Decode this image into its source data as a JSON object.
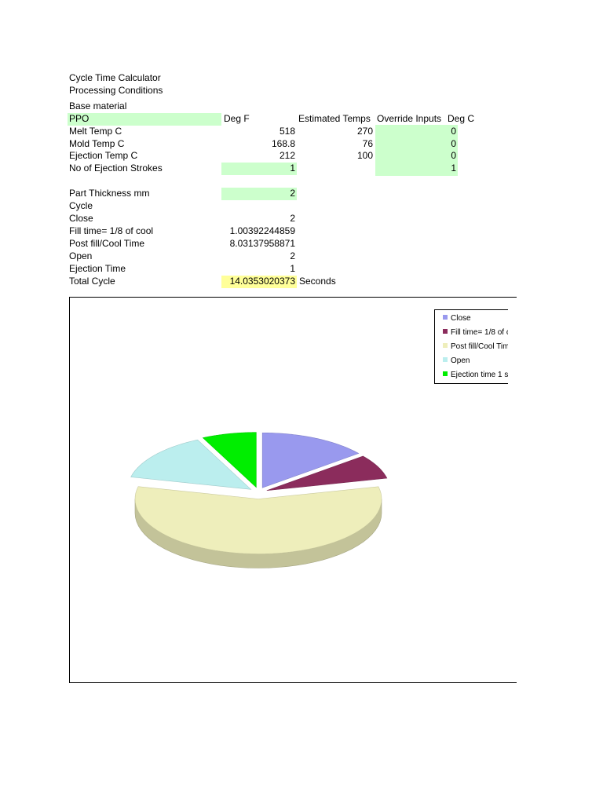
{
  "sheet": {
    "title": "Cycle Time Calculator",
    "subtitle": "Processing Conditions",
    "base_material_label": "Base material",
    "material": "PPO",
    "col_deg_f": "Deg F",
    "col_estimated": "Estimated Temps",
    "col_override": "Override Inputs",
    "col_deg_c": "Deg C",
    "rows": [
      {
        "label": "Melt Temp C",
        "deg_f": "518",
        "estimated": "270",
        "override": "0"
      },
      {
        "label": "Mold Temp C",
        "deg_f": "168.8",
        "estimated": "76",
        "override": "0"
      },
      {
        "label": "Ejection Temp C",
        "deg_f": "212",
        "estimated": "100",
        "override": "0"
      },
      {
        "label": "No of Ejection Strokes",
        "deg_f": "1",
        "estimated": "",
        "override": "1"
      }
    ],
    "part_thickness_label": "Part Thickness mm",
    "part_thickness_value": "2",
    "cycle_label": "Cycle",
    "cycle_rows": [
      {
        "label": "Close",
        "value": "2"
      },
      {
        "label": "Fill time= 1/8 of cool",
        "value": "1.00392244859"
      },
      {
        "label": "Post fill/Cool Time",
        "value": "8.03137958871"
      },
      {
        "label": "Open",
        "value": "2"
      },
      {
        "label": "Ejection Time",
        "value": "1"
      }
    ],
    "total_label": "Total Cycle",
    "total_value": "14.0353020373",
    "total_unit": "Seconds"
  },
  "chart_data": {
    "type": "pie",
    "title": "",
    "categories": [
      "Close",
      "Fill time= 1/8 of c",
      "Post fill/Cool Tim",
      "Open",
      "Ejection time 1 s"
    ],
    "values": [
      2,
      1.00392244859,
      8.03137958871,
      2,
      1
    ],
    "colors": [
      "#9999ee",
      "#8b2c5c",
      "#eeeebb",
      "#bbeeee",
      "#00ee00"
    ],
    "legend_position": "top-right",
    "three_d": true
  }
}
